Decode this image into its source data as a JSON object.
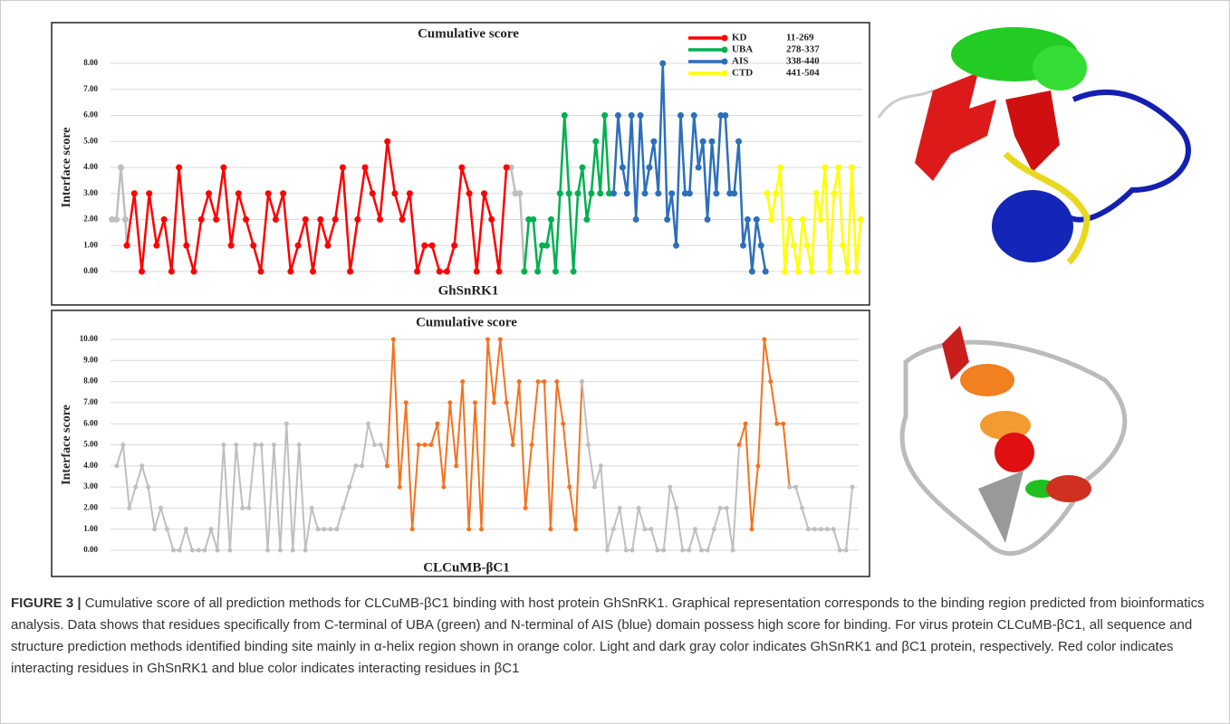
{
  "chart_data": [
    {
      "type": "line",
      "title": "Cumulative score",
      "x_label": "GhSnRK1",
      "y_label": "Interface score",
      "xlim": [
        0,
        505
      ],
      "ylim": [
        0,
        8
      ],
      "yticks": [
        {
          "value": 0,
          "label": "0.00"
        },
        {
          "value": 1,
          "label": "1.00"
        },
        {
          "value": 2,
          "label": "2.00"
        },
        {
          "value": 3,
          "label": "3.00"
        },
        {
          "value": 4,
          "label": "4.00"
        },
        {
          "value": 5,
          "label": "5.00"
        },
        {
          "value": 6,
          "label": "6.00"
        },
        {
          "value": 7,
          "label": "7.00"
        },
        {
          "value": 8,
          "label": "8.00"
        }
      ],
      "grid": true,
      "legend": "upper right",
      "series": [
        {
          "color": "#bfbfbf",
          "x": [
            1,
            4,
            7,
            10,
            11
          ],
          "values": [
            2,
            2,
            4,
            2,
            1
          ]
        },
        {
          "color": "#bfbfbf",
          "x": [
            266,
            269,
            272,
            275,
            278
          ],
          "values": [
            4,
            4,
            3,
            3,
            0
          ]
        },
        {
          "name": "KD",
          "range": "11-269",
          "color": "#ff0000",
          "x": [
            11,
            16,
            21,
            26,
            31,
            36,
            41,
            46,
            51,
            56,
            61,
            66,
            71,
            76,
            81,
            86,
            91,
            96,
            101,
            106,
            111,
            116,
            121,
            126,
            131,
            136,
            141,
            146,
            151,
            156,
            161,
            166,
            171,
            176,
            181,
            186,
            191,
            196,
            201,
            206,
            211,
            216,
            221,
            226,
            231,
            236,
            241,
            246,
            251,
            256,
            261,
            266
          ],
          "values": [
            1,
            3,
            0,
            3,
            1,
            2,
            0,
            4,
            1,
            0,
            2,
            3,
            2,
            4,
            1,
            3,
            2,
            1,
            0,
            3,
            2,
            3,
            0,
            1,
            2,
            0,
            2,
            1,
            2,
            4,
            0,
            2,
            4,
            3,
            2,
            5,
            3,
            2,
            3,
            0,
            1,
            1,
            0,
            0,
            1,
            4,
            3,
            0,
            3,
            2,
            0,
            4
          ]
        },
        {
          "name": "UBA",
          "range": "278-337",
          "color": "#00b050",
          "x": [
            278,
            281,
            284,
            287,
            290,
            293,
            296,
            299,
            302,
            305,
            308,
            311,
            314,
            317,
            320,
            323,
            326,
            329,
            332,
            335
          ],
          "values": [
            0,
            2,
            2,
            0,
            1,
            1,
            2,
            0,
            3,
            6,
            3,
            0,
            3,
            4,
            2,
            3,
            5,
            3,
            6,
            3
          ]
        },
        {
          "name": "AIS",
          "range": "338-440",
          "color": "#2e6fba",
          "x": [
            338,
            341,
            344,
            347,
            350,
            353,
            356,
            359,
            362,
            365,
            368,
            371,
            374,
            377,
            380,
            383,
            386,
            389,
            392,
            395,
            398,
            401,
            404,
            407,
            410,
            413,
            416,
            419,
            422,
            425,
            428,
            431,
            434,
            437,
            440
          ],
          "values": [
            3,
            6,
            4,
            3,
            6,
            2,
            6,
            3,
            4,
            5,
            3,
            8,
            2,
            3,
            1,
            6,
            3,
            3,
            6,
            4,
            5,
            2,
            5,
            3,
            6,
            6,
            3,
            3,
            5,
            1,
            2,
            0,
            2,
            1,
            0
          ]
        },
        {
          "name": "CTD",
          "range": "441-504",
          "color": "#ffff00",
          "x": [
            441,
            444,
            447,
            450,
            453,
            456,
            459,
            462,
            465,
            468,
            471,
            474,
            477,
            480,
            483,
            486,
            489,
            492,
            495,
            498,
            501,
            504
          ],
          "values": [
            3,
            2,
            3,
            4,
            0,
            2,
            1,
            0,
            2,
            1,
            0,
            3,
            2,
            4,
            0,
            3,
            4,
            1,
            0,
            4,
            0,
            2
          ]
        }
      ]
    },
    {
      "type": "line",
      "title": "Cumulative score",
      "x_label": "CLCuMB-βC1",
      "y_label": "Interface score",
      "xlim": [
        0,
        119
      ],
      "ylim": [
        0,
        10
      ],
      "yticks": [
        {
          "value": 0,
          "label": "0.00"
        },
        {
          "value": 1,
          "label": "1.00"
        },
        {
          "value": 2,
          "label": "2.00"
        },
        {
          "value": 3,
          "label": "3.00"
        },
        {
          "value": 4,
          "label": "4.00"
        },
        {
          "value": 5,
          "label": "5.00"
        },
        {
          "value": 6,
          "label": "6.00"
        },
        {
          "value": 7,
          "label": "7.00"
        },
        {
          "value": 8,
          "label": "8.00"
        },
        {
          "value": 9,
          "label": "9.00"
        },
        {
          "value": 10,
          "label": "10.00"
        }
      ],
      "grid": true,
      "series": [
        {
          "color": "#bfbfbf",
          "x": [
            1,
            2,
            3,
            4,
            5,
            6,
            7,
            8,
            9,
            10,
            11,
            12,
            13,
            14,
            15,
            16,
            17,
            18,
            19,
            20,
            21,
            22,
            23,
            24,
            25,
            26,
            27,
            28,
            29,
            30,
            31,
            32,
            33,
            34,
            35,
            36,
            37,
            38,
            39,
            40,
            41,
            42,
            43,
            44
          ],
          "values": [
            4,
            5,
            2,
            3,
            4,
            3,
            1,
            2,
            1,
            0,
            0,
            1,
            0,
            0,
            0,
            1,
            0,
            5,
            0,
            5,
            2,
            2,
            5,
            5,
            0,
            5,
            0,
            6,
            0,
            5,
            0,
            2,
            1,
            1,
            1,
            1,
            2,
            3,
            4,
            4,
            6,
            5,
            5,
            4
          ]
        },
        {
          "color": "#f4731f",
          "x": [
            44,
            45,
            46,
            47,
            48,
            49,
            50,
            51,
            52,
            53,
            54,
            55,
            56,
            57,
            58,
            59,
            60,
            61,
            62,
            63,
            64,
            65,
            66,
            67,
            68,
            69,
            70,
            71,
            72,
            73,
            74,
            75
          ],
          "values": [
            4,
            10,
            3,
            7,
            1,
            5,
            5,
            5,
            6,
            3,
            7,
            4,
            8,
            1,
            7,
            1,
            10,
            7,
            10,
            7,
            5,
            8,
            2,
            5,
            8,
            8,
            1,
            8,
            6,
            3,
            1,
            8
          ]
        },
        {
          "color": "#bfbfbf",
          "x": [
            75,
            76,
            77,
            78,
            79,
            80,
            81,
            82,
            83,
            84,
            85,
            86,
            87,
            88,
            89,
            90,
            91,
            92,
            93,
            94,
            95,
            96,
            97,
            98,
            99,
            100
          ],
          "values": [
            8,
            5,
            3,
            4,
            0,
            1,
            2,
            0,
            0,
            2,
            1,
            1,
            0,
            0,
            3,
            2,
            0,
            0,
            1,
            0,
            0,
            1,
            2,
            2,
            0,
            5
          ]
        },
        {
          "color": "#f4731f",
          "x": [
            100,
            101,
            102,
            103,
            104,
            105,
            106,
            107,
            108
          ],
          "values": [
            5,
            6,
            1,
            4,
            10,
            8,
            6,
            6,
            3
          ]
        },
        {
          "color": "#bfbfbf",
          "x": [
            108,
            109,
            110,
            111,
            112,
            113,
            114,
            115,
            116,
            117,
            118
          ],
          "values": [
            3,
            3,
            2,
            1,
            1,
            1,
            1,
            1,
            0,
            0,
            3
          ]
        }
      ]
    }
  ],
  "caption": {
    "label": "FIGURE 3 |",
    "text": "Cumulative score of all prediction methods for CLCuMB-βC1 binding with host protein GhSnRK1. Graphical representation corresponds to the binding region predicted from bioinformatics analysis. Data shows that residues specifically from C-terminal of UBA (green) and N-terminal of AIS (blue) domain possess high score for binding. For virus protein CLCuMB-βC1, all sequence and structure prediction methods identified binding site mainly in α-helix region shown in orange color. Light and dark gray color indicates GhSnRK1 and βC1 protein, respectively. Red color indicates interacting residues in GhSnRK1 and blue color indicates interacting residues in βC1"
  }
}
